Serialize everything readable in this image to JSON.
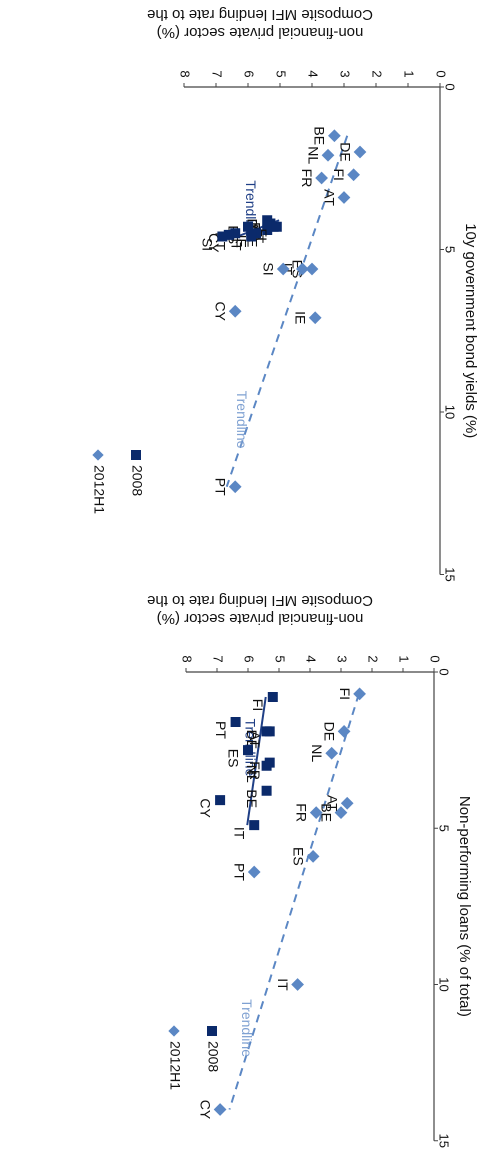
{
  "colors": {
    "series_2008": "#0b2a6b",
    "series_2012": "#5b87c4",
    "trend_2008": "#1f3f86",
    "trend_2012": "#5b87c4",
    "trend_label_2012": "#7fa1d2",
    "axis": "#444444"
  },
  "chart_data": [
    {
      "type": "scatter",
      "title": "Composite MFI lending rate to the non-financial private sector (%)",
      "xlabel": "10y government bond yields (%)",
      "ylabel": "Composite MFI lending rate to the non-financial private sector (%)",
      "x_axis_title": "10y government bond yields (%)",
      "y_axis_title_lines": [
        "Composite MFI lending rate to the",
        "non-financial private sector (%)"
      ],
      "xlim": [
        0,
        15
      ],
      "ylim": [
        0,
        8
      ],
      "x_ticks": [
        "0",
        "5",
        "10",
        "15"
      ],
      "y_ticks": [
        "0",
        "1",
        "2",
        "3",
        "4",
        "5",
        "6",
        "7",
        "8"
      ],
      "legend": [
        "2008",
        "2012H1"
      ],
      "series": [
        {
          "name": "2008",
          "points": [
            {
              "label": "DE",
              "x": 4.1,
              "y": 5.4
            },
            {
              "label": "FR",
              "x": 4.2,
              "y": 5.3
            },
            {
              "label": "NL",
              "x": 4.25,
              "y": 5.35
            },
            {
              "label": "AT",
              "x": 4.3,
              "y": 5.2
            },
            {
              "label": "BE",
              "x": 4.4,
              "y": 5.4
            },
            {
              "label": "FI",
              "x": 4.3,
              "y": 5.1
            },
            {
              "label": "ES",
              "x": 4.3,
              "y": 6.0
            },
            {
              "label": "IE",
              "x": 4.5,
              "y": 5.75
            },
            {
              "label": "IT",
              "x": 4.6,
              "y": 5.9
            },
            {
              "label": "PT",
              "x": 4.5,
              "y": 6.4
            },
            {
              "label": "CY",
              "x": 4.55,
              "y": 6.6
            },
            {
              "label": "SI",
              "x": 4.6,
              "y": 6.8
            }
          ],
          "trendline_label": "Trendline"
        },
        {
          "name": "2012H1",
          "points": [
            {
              "label": "DE",
              "x": 2.0,
              "y": 2.5
            },
            {
              "label": "FI",
              "x": 2.7,
              "y": 2.7
            },
            {
              "label": "AT",
              "x": 3.4,
              "y": 3.0
            },
            {
              "label": "NL",
              "x": 2.1,
              "y": 3.5
            },
            {
              "label": "FR",
              "x": 2.8,
              "y": 3.7
            },
            {
              "label": "BE",
              "x": 1.5,
              "y": 3.3
            },
            {
              "label": "ES",
              "x": 5.6,
              "y": 4.0
            },
            {
              "label": "IT",
              "x": 5.6,
              "y": 4.3
            },
            {
              "label": "SI",
              "x": 5.6,
              "y": 4.9
            },
            {
              "label": "IE",
              "x": 7.1,
              "y": 3.9
            },
            {
              "label": "CY",
              "x": 6.9,
              "y": 6.4
            },
            {
              "label": "PT",
              "x": 12.3,
              "y": 6.4
            }
          ],
          "trendline_label": "Trendline"
        }
      ]
    },
    {
      "type": "scatter",
      "title": "Composite MFI lending rate to the non-financial private sector (%)",
      "xlabel": "Non-performing loans (% of total)",
      "ylabel": "Composite MFI lending rate to the non-financial private sector (%)",
      "x_axis_title": "Non-performing loans (% of total)",
      "y_axis_title_lines": [
        "Composite MFI lending rate to the",
        "non-financial private sector (%)"
      ],
      "xlim": [
        0,
        15
      ],
      "ylim": [
        0,
        8
      ],
      "x_ticks": [
        "0",
        "5",
        "10",
        "15"
      ],
      "y_ticks": [
        "0",
        "1",
        "2",
        "3",
        "4",
        "5",
        "6",
        "7",
        "8"
      ],
      "legend": [
        "2008",
        "2012H1"
      ],
      "series": [
        {
          "name": "2008",
          "points": [
            {
              "label": "FI",
              "x": 0.8,
              "y": 5.2
            },
            {
              "label": "AT",
              "x": 1.9,
              "y": 5.3
            },
            {
              "label": "DE",
              "x": 1.9,
              "y": 5.4
            },
            {
              "label": "PT",
              "x": 1.6,
              "y": 6.4
            },
            {
              "label": "ES",
              "x": 2.5,
              "y": 6.0
            },
            {
              "label": "NL",
              "x": 3.0,
              "y": 5.4
            },
            {
              "label": "FR",
              "x": 2.9,
              "y": 5.3
            },
            {
              "label": "BE",
              "x": 3.8,
              "y": 5.4
            },
            {
              "label": "CY",
              "x": 4.1,
              "y": 6.9
            },
            {
              "label": "IT",
              "x": 4.9,
              "y": 5.8
            }
          ],
          "trendline_label": "Trendline"
        },
        {
          "name": "2012H1",
          "points": [
            {
              "label": "FI",
              "x": 0.7,
              "y": 2.4
            },
            {
              "label": "DE",
              "x": 1.9,
              "y": 2.9
            },
            {
              "label": "NL",
              "x": 2.6,
              "y": 3.3
            },
            {
              "label": "AT",
              "x": 4.2,
              "y": 2.8
            },
            {
              "label": "BE",
              "x": 4.5,
              "y": 3.0
            },
            {
              "label": "FR",
              "x": 4.5,
              "y": 3.8
            },
            {
              "label": "ES",
              "x": 5.9,
              "y": 3.9
            },
            {
              "label": "PT",
              "x": 6.4,
              "y": 5.8
            },
            {
              "label": "IT",
              "x": 10.0,
              "y": 4.4
            },
            {
              "label": "CY",
              "x": 14.0,
              "y": 6.9
            }
          ],
          "trendline_label": "Trendline"
        }
      ]
    }
  ]
}
